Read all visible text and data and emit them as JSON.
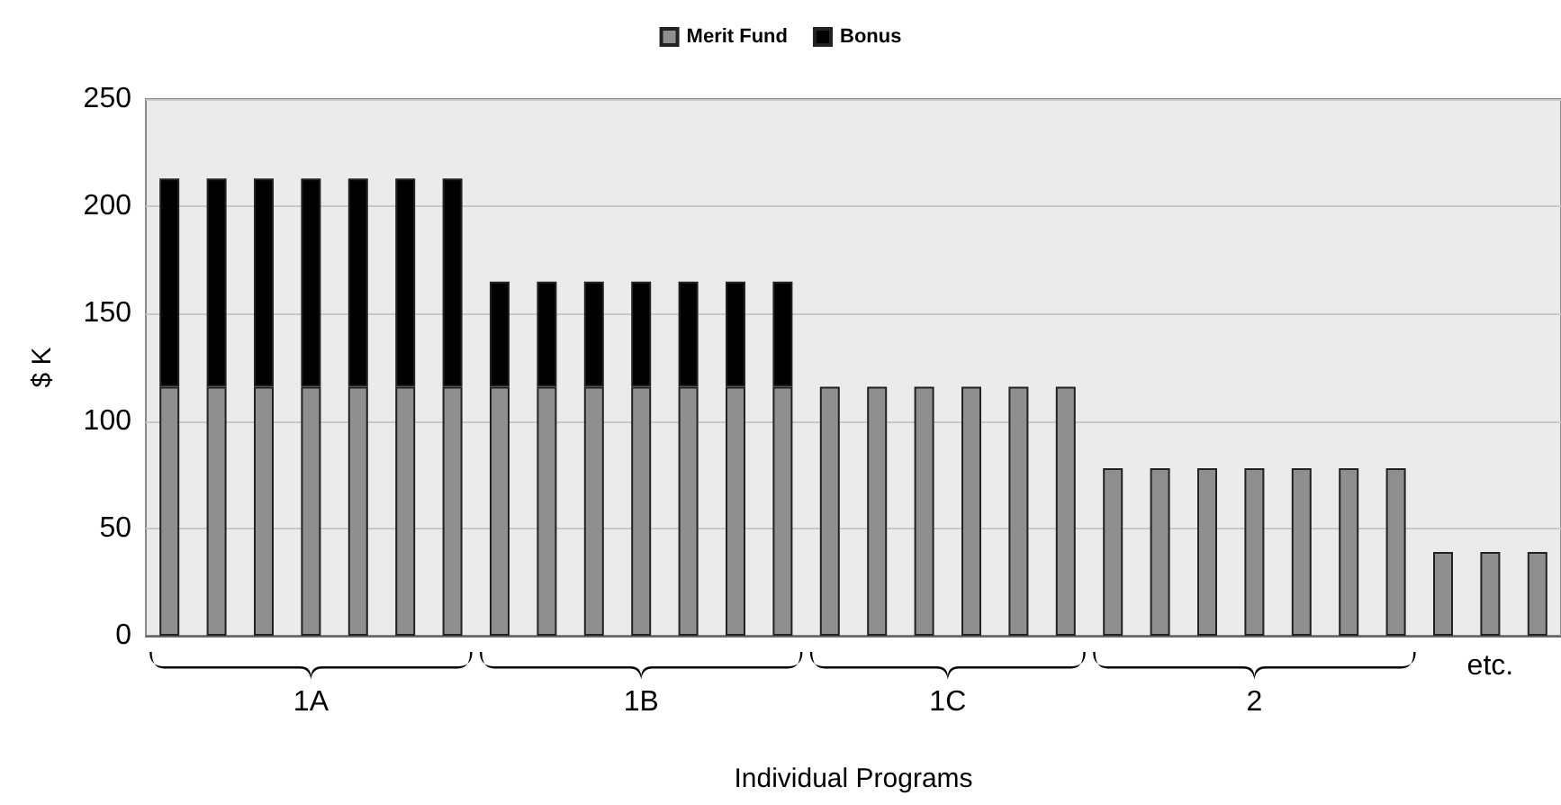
{
  "chart_data": {
    "type": "bar",
    "stacked": true,
    "xlabel": "Individual Programs",
    "ylabel": "$ K",
    "categories": [
      null,
      null,
      null,
      null,
      null,
      null,
      null,
      null,
      null,
      null,
      null,
      null,
      null,
      null,
      null,
      null,
      null,
      null,
      null,
      null,
      null,
      null,
      null,
      null,
      null,
      null,
      null,
      null,
      null,
      null
    ],
    "series": [
      {
        "name": "Merit Fund",
        "color": "#8f8f8f",
        "values": [
          116,
          116,
          116,
          116,
          116,
          116,
          116,
          116,
          116,
          116,
          116,
          116,
          116,
          116,
          116,
          116,
          116,
          116,
          116,
          116,
          78,
          78,
          78,
          78,
          78,
          78,
          78,
          39,
          39,
          39
        ]
      },
      {
        "name": "Bonus",
        "color": "#000000",
        "values": [
          97,
          97,
          97,
          97,
          97,
          97,
          97,
          49,
          49,
          49,
          49,
          49,
          49,
          49,
          null,
          null,
          null,
          null,
          null,
          null,
          null,
          null,
          null,
          null,
          null,
          null,
          null,
          null,
          null,
          null
        ]
      }
    ],
    "ylim": [
      0,
      250
    ],
    "yticks": [
      0,
      50,
      100,
      150,
      200,
      250
    ],
    "grid": "y",
    "legend": "top",
    "annotations": [
      "1A",
      "1B",
      "1C",
      "2",
      "etc."
    ]
  }
}
